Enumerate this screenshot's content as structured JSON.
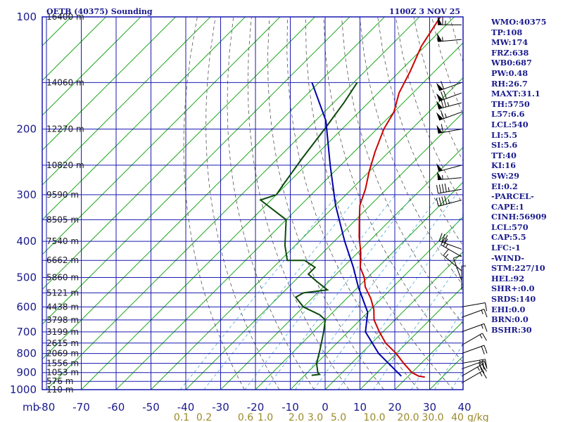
{
  "title": "OETB (40375) Sounding",
  "datetime": "1100Z  3 NOV 25",
  "chart_data": {
    "type": "line",
    "pressure_levels": [
      100,
      200,
      300,
      400,
      500,
      600,
      700,
      800,
      900,
      1000
    ],
    "temperature_ticks": [
      -80,
      -70,
      -60,
      -50,
      -40,
      -30,
      -20,
      -10,
      0,
      10,
      20,
      30,
      40
    ],
    "pressure_unit": "mb",
    "heights": [
      {
        "p": 100,
        "label": "16400 m"
      },
      {
        "p": 150,
        "label": "14060 m"
      },
      {
        "p": 200,
        "label": "12270 m"
      },
      {
        "p": 250,
        "label": "10820 m"
      },
      {
        "p": 300,
        "label": "9590 m"
      },
      {
        "p": 350,
        "label": "8505 m"
      },
      {
        "p": 400,
        "label": "7540 m"
      },
      {
        "p": 450,
        "label": "6662 m"
      },
      {
        "p": 500,
        "label": "5860 m"
      },
      {
        "p": 550,
        "label": "5121 m"
      },
      {
        "p": 600,
        "label": "4438 m"
      },
      {
        "p": 650,
        "label": "3798 m"
      },
      {
        "p": 700,
        "label": "3199 m"
      },
      {
        "p": 750,
        "label": "2615 m"
      },
      {
        "p": 800,
        "label": "2069 m"
      },
      {
        "p": 850,
        "label": "1556 m"
      },
      {
        "p": 900,
        "label": "1053 m"
      },
      {
        "p": 950,
        "label": "576 m"
      },
      {
        "p": 1000,
        "label": "110 m"
      }
    ],
    "mixing_ratio_labels": [
      "0.1",
      "0.2",
      "0.6",
      "1.0",
      "2.0",
      "3.0",
      "5.0",
      "10.0",
      "20.0",
      "30.0",
      "40"
    ],
    "mixing_ratio_unit": "g/kg",
    "series": [
      {
        "name": "temperature",
        "color": "#cc0000",
        "points": [
          [
            -74,
            100
          ],
          [
            -71,
            120
          ],
          [
            -67,
            140
          ],
          [
            -64,
            160
          ],
          [
            -60,
            180
          ],
          [
            -58,
            200
          ],
          [
            -54,
            230
          ],
          [
            -50,
            260
          ],
          [
            -46,
            290
          ],
          [
            -43,
            320
          ],
          [
            -39,
            350
          ],
          [
            -34,
            390
          ],
          [
            -29,
            430
          ],
          [
            -25,
            470
          ],
          [
            -21,
            500
          ],
          [
            -18,
            530
          ],
          [
            -13,
            570
          ],
          [
            -9,
            610
          ],
          [
            -6,
            650
          ],
          [
            -1,
            700
          ],
          [
            4,
            750
          ],
          [
            10,
            800
          ],
          [
            15,
            850
          ],
          [
            20,
            900
          ],
          [
            23,
            920
          ],
          [
            25,
            925
          ]
        ]
      },
      {
        "name": "dewpoint",
        "color": "#0b4a0b",
        "points": [
          [
            -79,
            150
          ],
          [
            -77,
            170
          ],
          [
            -75,
            200
          ],
          [
            -73,
            240
          ],
          [
            -71,
            280
          ],
          [
            -70,
            300
          ],
          [
            -73,
            310
          ],
          [
            -60,
            350
          ],
          [
            -53,
            410
          ],
          [
            -48,
            450
          ],
          [
            -43,
            450
          ],
          [
            -38,
            470
          ],
          [
            -38,
            490
          ],
          [
            -34,
            510
          ],
          [
            -28,
            540
          ],
          [
            -34,
            550
          ],
          [
            -35,
            565
          ],
          [
            -30,
            600
          ],
          [
            -23,
            630
          ],
          [
            -20,
            650
          ],
          [
            -17,
            700
          ],
          [
            -13,
            780
          ],
          [
            -10,
            850
          ],
          [
            -7,
            900
          ],
          [
            -6,
            910
          ],
          [
            -8,
            915
          ]
        ]
      },
      {
        "name": "parcel",
        "color": "#0000aa",
        "points": [
          [
            18,
            920
          ],
          [
            5,
            800
          ],
          [
            -5,
            700
          ],
          [
            -10,
            620
          ],
          [
            -20,
            530
          ],
          [
            -27,
            470
          ],
          [
            -37,
            400
          ],
          [
            -50,
            320
          ],
          [
            -63,
            250
          ],
          [
            -77,
            190
          ],
          [
            -92,
            150
          ]
        ]
      }
    ],
    "wind_barbs": [
      {
        "p": 105,
        "dir": 270,
        "spd": 65
      },
      {
        "p": 115,
        "dir": 275,
        "spd": 55
      },
      {
        "p": 150,
        "dir": 290,
        "spd": 60
      },
      {
        "p": 160,
        "dir": 290,
        "spd": 70
      },
      {
        "p": 170,
        "dir": 285,
        "spd": 75
      },
      {
        "p": 180,
        "dir": 290,
        "spd": 65
      },
      {
        "p": 200,
        "dir": 280,
        "spd": 60
      },
      {
        "p": 250,
        "dir": 285,
        "spd": 50
      },
      {
        "p": 270,
        "dir": 275,
        "spd": 55
      },
      {
        "p": 290,
        "dir": 280,
        "spd": 45
      },
      {
        "p": 310,
        "dir": 285,
        "spd": 45
      },
      {
        "p": 420,
        "dir": 250,
        "spd": 30
      },
      {
        "p": 440,
        "dir": 240,
        "spd": 25
      },
      {
        "p": 480,
        "dir": 230,
        "spd": 15
      },
      {
        "p": 510,
        "dir": 200,
        "spd": 10
      },
      {
        "p": 540,
        "dir": 180,
        "spd": 5
      },
      {
        "p": 600,
        "dir": 100,
        "spd": 10
      },
      {
        "p": 640,
        "dir": 110,
        "spd": 15
      },
      {
        "p": 700,
        "dir": 110,
        "spd": 15
      },
      {
        "p": 760,
        "dir": 120,
        "spd": 15
      },
      {
        "p": 800,
        "dir": 110,
        "spd": 20
      },
      {
        "p": 850,
        "dir": 100,
        "spd": 25
      },
      {
        "p": 880,
        "dir": 110,
        "spd": 30
      },
      {
        "p": 920,
        "dir": 120,
        "spd": 25
      },
      {
        "p": 960,
        "dir": 120,
        "spd": 15
      }
    ]
  },
  "indices": [
    "WMO:40375",
    "TP:108",
    "MW:174",
    "FRZ:638",
    "WB0:687",
    "PW:0.48",
    "RH:26.7",
    "MAXT:31.1",
    "TH:5750",
    "L57:6.6",
    "LCL:540",
    "LI:5.5",
    "SI:5.6",
    "TT:40",
    "KI:16",
    "SW:29",
    "EI:0.2",
    "-PARCEL-",
    "CAPE:1",
    "CINH:56909",
    "LCL:570",
    "CAP:5.5",
    "LFC:-1",
    "-WIND-",
    "STM:227/10",
    "HEL:92",
    "SHR+:0.0",
    "SRDS:140",
    "EHI:0.0",
    "BRN:0.0",
    "BSHR:30"
  ]
}
